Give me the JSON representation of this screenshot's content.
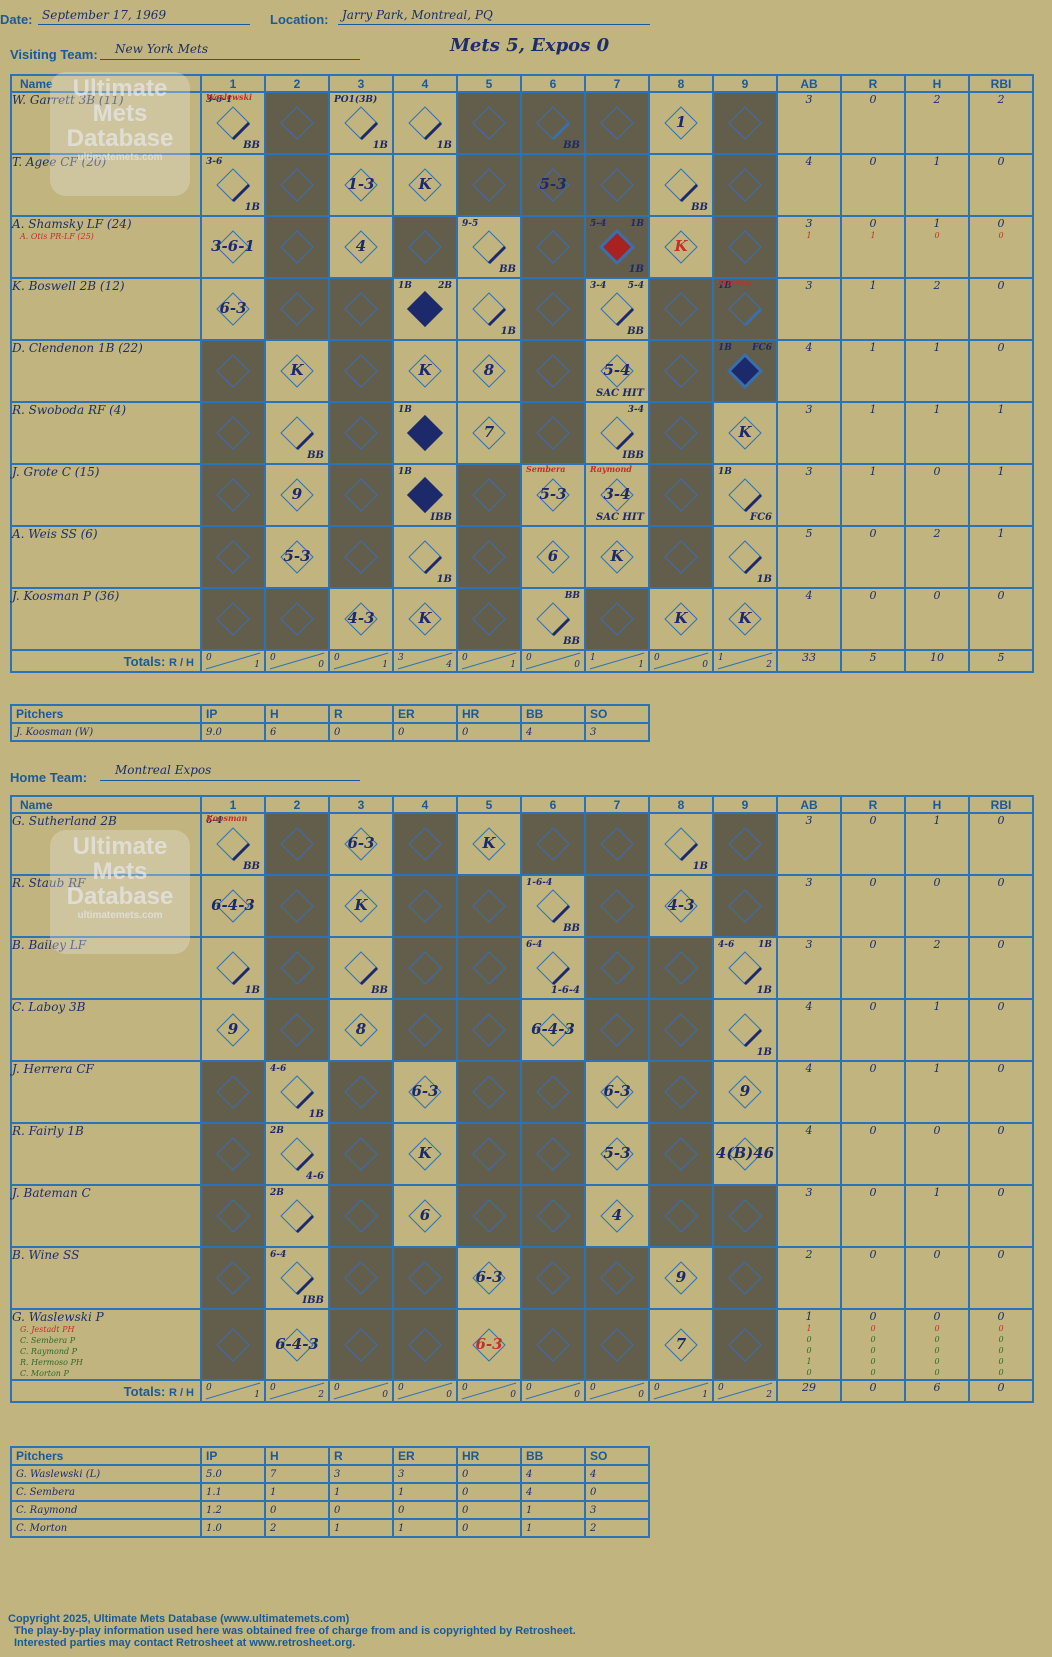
{
  "header": {
    "date_label": "Date:",
    "date": "September 17, 1969",
    "location_label": "Location:",
    "location": "Jarry Park, Montreal, PQ",
    "visiting_label": "Visiting Team:",
    "visiting_team": "New York Mets",
    "score_title": "Mets 5, Expos 0",
    "home_label": "Home Team:",
    "home_team": "Montreal Expos"
  },
  "columns": {
    "name": "Name",
    "innings": [
      "1",
      "2",
      "3",
      "4",
      "5",
      "6",
      "7",
      "8",
      "9"
    ],
    "stats": [
      "AB",
      "R",
      "H",
      "RBI"
    ]
  },
  "totals_label": "Totals:",
  "totals_r": "R",
  "totals_h": "H",
  "watermark": {
    "line1": "Ultimate",
    "line2": "Mets",
    "line3": "Database",
    "url": "ultimatemets.com"
  },
  "visitors": {
    "players": [
      {
        "name": "W. Garrett 3B (11)",
        "sub": "",
        "stats": [
          "3",
          "0",
          "2",
          "2"
        ],
        "sub_stats": []
      },
      {
        "name": "T. Agee CF (20)",
        "sub": "",
        "stats": [
          "4",
          "0",
          "1",
          "0"
        ],
        "sub_stats": []
      },
      {
        "name": "A. Shamsky LF (24)",
        "sub": "A. Otis PR-LF (25)",
        "stats": [
          "3",
          "0",
          "1",
          "0"
        ],
        "sub_stats": [
          "1",
          "1",
          "0",
          "0"
        ]
      },
      {
        "name": "K. Boswell 2B (12)",
        "sub": "",
        "stats": [
          "3",
          "1",
          "2",
          "0"
        ],
        "sub_stats": []
      },
      {
        "name": "D. Clendenon 1B (22)",
        "sub": "",
        "stats": [
          "4",
          "1",
          "1",
          "0"
        ],
        "sub_stats": []
      },
      {
        "name": "R. Swoboda RF (4)",
        "sub": "",
        "stats": [
          "3",
          "1",
          "1",
          "1"
        ],
        "sub_stats": []
      },
      {
        "name": "J. Grote C (15)",
        "sub": "",
        "stats": [
          "3",
          "1",
          "0",
          "1"
        ],
        "sub_stats": []
      },
      {
        "name": "A. Weis SS (6)",
        "sub": "",
        "stats": [
          "5",
          "0",
          "2",
          "1"
        ],
        "sub_stats": []
      },
      {
        "name": "J. Koosman P (36)",
        "sub": "",
        "stats": [
          "4",
          "0",
          "0",
          "0"
        ],
        "sub_stats": []
      }
    ],
    "cells": [
      [
        {
          "c": "",
          "br": "BB",
          "tl": "3-6-1",
          "tr": "",
          "note": "Waslewski",
          "hit": 1
        },
        {
          "dark": 1
        },
        {
          "c": "",
          "br": "1B",
          "tl": "PO1(3B)",
          "hit": 1
        },
        {
          "c": "",
          "br": "1B",
          "hit": 1
        },
        {
          "dark": 1
        },
        {
          "c": "",
          "br": "BB",
          "hit": 1,
          "dark": 1
        },
        {
          "dark": 1
        },
        {
          "c": "1"
        },
        {
          "dark": 1
        }
      ],
      [
        {
          "c": "",
          "br": "1B",
          "tl": "3-6",
          "hit": 1
        },
        {
          "dark": 1
        },
        {
          "c": "1-3"
        },
        {
          "c": "K"
        },
        {
          "dark": 1
        },
        {
          "c": "5-3",
          "dark": 1
        },
        {
          "dark": 1
        },
        {
          "c": "",
          "br": "BB",
          "hit": 1
        },
        {
          "dark": 1
        }
      ],
      [
        {
          "c": "3-6-1"
        },
        {
          "dark": 1
        },
        {
          "c": "4"
        },
        {
          "dark": 1
        },
        {
          "c": "",
          "br": "BB",
          "tl": "9-5",
          "hit": 1
        },
        {
          "dark": 1
        },
        {
          "c": "",
          "br": "1B",
          "tl": "5-4",
          "tr": "1B",
          "run": 2,
          "dark": 1
        },
        {
          "c": "K",
          "red": 1
        },
        {
          "dark": 1
        }
      ],
      [
        {
          "c": "6-3"
        },
        {
          "dark": 1
        },
        {
          "dark": 1
        },
        {
          "c": "",
          "br": "",
          "tl": "1B",
          "tr": "2B",
          "run": 1
        },
        {
          "c": "",
          "br": "1B",
          "hit": 1
        },
        {
          "dark": 1
        },
        {
          "c": "",
          "br": "BB",
          "tl": "3-4",
          "tr": "5-4",
          "hit": 1
        },
        {
          "dark": 1
        },
        {
          "c": "",
          "tl": "1B",
          "note": "Morton",
          "hit": 1,
          "dark": 1
        }
      ],
      [
        {
          "dark": 1
        },
        {
          "c": "K"
        },
        {
          "dark": 1
        },
        {
          "c": "K"
        },
        {
          "c": "8"
        },
        {
          "dark": 1
        },
        {
          "c": "5-4",
          "br": "SAC HIT"
        },
        {
          "dark": 1
        },
        {
          "c": "",
          "tl": "1B",
          "tr": "FC6",
          "run": 1,
          "dark": 1
        }
      ],
      [
        {
          "dark": 1
        },
        {
          "c": "",
          "br": "BB",
          "hit": 1
        },
        {
          "dark": 1
        },
        {
          "c": "",
          "tl": "1B",
          "run": 1
        },
        {
          "c": "7"
        },
        {
          "dark": 1
        },
        {
          "c": "",
          "br": "IBB",
          "tr": "3-4",
          "hit": 1
        },
        {
          "dark": 1
        },
        {
          "c": "K"
        }
      ],
      [
        {
          "dark": 1
        },
        {
          "c": "9"
        },
        {
          "dark": 1
        },
        {
          "c": "",
          "tl": "1B",
          "br": "IBB",
          "run": 1
        },
        {
          "dark": 1
        },
        {
          "c": "5-3",
          "note": "Sembera"
        },
        {
          "c": "3-4",
          "br": "SAC HIT",
          "note": "Raymond"
        },
        {
          "dark": 1
        },
        {
          "c": "",
          "br": "FC6",
          "tl": "1B",
          "hit": 1
        }
      ],
      [
        {
          "dark": 1
        },
        {
          "c": "5-3"
        },
        {
          "dark": 1
        },
        {
          "c": "",
          "br": "1B",
          "hit": 1
        },
        {
          "dark": 1
        },
        {
          "c": "6"
        },
        {
          "c": "K"
        },
        {
          "dark": 1
        },
        {
          "c": "",
          "br": "1B",
          "hit": 1
        }
      ],
      [
        {
          "dark": 1
        },
        {
          "dark": 1
        },
        {
          "c": "4-3"
        },
        {
          "c": "K"
        },
        {
          "dark": 1
        },
        {
          "c": "",
          "br": "BB",
          "tr": "BB",
          "hit": 1
        },
        {
          "dark": 1
        },
        {
          "c": "K"
        },
        {
          "c": "K"
        }
      ]
    ],
    "totals": [
      [
        "0",
        "1"
      ],
      [
        "0",
        "0"
      ],
      [
        "0",
        "1"
      ],
      [
        "3",
        "4"
      ],
      [
        "0",
        "1"
      ],
      [
        "0",
        "0"
      ],
      [
        "1",
        "1"
      ],
      [
        "0",
        "0"
      ],
      [
        "1",
        "2"
      ]
    ],
    "totals_stats": [
      "33",
      "5",
      "10",
      "5"
    ]
  },
  "visiting_pitchers": {
    "headers": [
      "Pitchers",
      "IP",
      "H",
      "R",
      "ER",
      "HR",
      "BB",
      "SO"
    ],
    "rows": [
      [
        "J. Koosman (W)",
        "9.0",
        "6",
        "0",
        "0",
        "0",
        "4",
        "3"
      ]
    ]
  },
  "home": {
    "players": [
      {
        "name": "G. Sutherland 2B",
        "sub": "",
        "stats": [
          "3",
          "0",
          "1",
          "0"
        ],
        "sub_stats": []
      },
      {
        "name": "R. Staub RF",
        "sub": "",
        "stats": [
          "3",
          "0",
          "0",
          "0"
        ],
        "sub_stats": []
      },
      {
        "name": "B. Bailey LF",
        "sub": "",
        "stats": [
          "3",
          "0",
          "2",
          "0"
        ],
        "sub_stats": []
      },
      {
        "name": "C. Laboy 3B",
        "sub": "",
        "stats": [
          "4",
          "0",
          "1",
          "0"
        ],
        "sub_stats": []
      },
      {
        "name": "J. Herrera CF",
        "sub": "",
        "stats": [
          "4",
          "0",
          "1",
          "0"
        ],
        "sub_stats": []
      },
      {
        "name": "R. Fairly 1B",
        "sub": "",
        "stats": [
          "4",
          "0",
          "0",
          "0"
        ],
        "sub_stats": []
      },
      {
        "name": "J. Bateman C",
        "sub": "",
        "stats": [
          "3",
          "0",
          "1",
          "0"
        ],
        "sub_stats": []
      },
      {
        "name": "B. Wine SS",
        "sub": "",
        "stats": [
          "2",
          "0",
          "0",
          "0"
        ],
        "sub_stats": []
      },
      {
        "name": "G. Waslewski P",
        "sub": "G. Jestadt PH",
        "sub2": [
          "C. Sembera P",
          "C. Raymond P",
          "R. Hermoso PH",
          "C. Morton P"
        ],
        "stats": [
          "1",
          "0",
          "0",
          "0"
        ],
        "sub_stats": [
          "1",
          "0",
          "0",
          "0"
        ]
      }
    ],
    "cells": [
      [
        {
          "c": "",
          "br": "BB",
          "tl": "6-4",
          "note": "Koosman",
          "hit": 1
        },
        {
          "dark": 1
        },
        {
          "c": "6-3"
        },
        {
          "dark": 1
        },
        {
          "c": "K"
        },
        {
          "dark": 1
        },
        {
          "dark": 1
        },
        {
          "c": "",
          "br": "1B",
          "hit": 1
        },
        {
          "dark": 1
        }
      ],
      [
        {
          "c": "6-4-3"
        },
        {
          "dark": 1
        },
        {
          "c": "K"
        },
        {
          "dark": 1
        },
        {
          "dark": 1
        },
        {
          "c": "",
          "br": "BB",
          "tl": "1-6-4",
          "hit": 1
        },
        {
          "dark": 1
        },
        {
          "c": "4-3"
        },
        {
          "dark": 1
        }
      ],
      [
        {
          "c": "",
          "br": "1B",
          "hit": 1
        },
        {
          "dark": 1
        },
        {
          "c": "",
          "br": "BB",
          "hit": 1
        },
        {
          "dark": 1
        },
        {
          "dark": 1
        },
        {
          "c": "",
          "br": "1-6-4",
          "tl": "6-4",
          "hit": 1
        },
        {
          "dark": 1
        },
        {
          "dark": 1
        },
        {
          "c": "",
          "br": "1B",
          "tl": "4-6",
          "tr": "1B",
          "hit": 1
        }
      ],
      [
        {
          "c": "9"
        },
        {
          "dark": 1
        },
        {
          "c": "8"
        },
        {
          "dark": 1
        },
        {
          "dark": 1
        },
        {
          "c": "6-4-3"
        },
        {
          "dark": 1
        },
        {
          "dark": 1
        },
        {
          "c": "",
          "br": "1B",
          "hit": 1
        }
      ],
      [
        {
          "dark": 1
        },
        {
          "c": "",
          "br": "1B",
          "tl": "4-6",
          "hit": 1
        },
        {
          "dark": 1
        },
        {
          "c": "6-3"
        },
        {
          "dark": 1
        },
        {
          "dark": 1
        },
        {
          "c": "6-3"
        },
        {
          "dark": 1
        },
        {
          "c": "9"
        }
      ],
      [
        {
          "dark": 1
        },
        {
          "c": "",
          "br": "4-6",
          "tl": "2B",
          "hit": 1
        },
        {
          "dark": 1
        },
        {
          "c": "K"
        },
        {
          "dark": 1
        },
        {
          "dark": 1
        },
        {
          "c": "5-3"
        },
        {
          "dark": 1
        },
        {
          "c": "4(B)46"
        }
      ],
      [
        {
          "dark": 1
        },
        {
          "c": "",
          "tl": "2B",
          "hit": 1
        },
        {
          "dark": 1
        },
        {
          "c": "6"
        },
        {
          "dark": 1
        },
        {
          "dark": 1
        },
        {
          "c": "4"
        },
        {
          "dark": 1
        },
        {
          "dark": 1
        }
      ],
      [
        {
          "dark": 1
        },
        {
          "c": "",
          "br": "IBB",
          "tl": "6-4",
          "hit": 1
        },
        {
          "dark": 1
        },
        {
          "dark": 1
        },
        {
          "c": "6-3"
        },
        {
          "dark": 1
        },
        {
          "dark": 1
        },
        {
          "c": "9"
        },
        {
          "dark": 1
        }
      ],
      [
        {
          "dark": 1
        },
        {
          "c": "6-4-3"
        },
        {
          "dark": 1
        },
        {
          "dark": 1
        },
        {
          "c": "6-3",
          "red": 1
        },
        {
          "dark": 1
        },
        {
          "dark": 1
        },
        {
          "c": "7"
        },
        {
          "dark": 1
        }
      ]
    ],
    "totals": [
      [
        "0",
        "1"
      ],
      [
        "0",
        "2"
      ],
      [
        "0",
        "0"
      ],
      [
        "0",
        "0"
      ],
      [
        "0",
        "0"
      ],
      [
        "0",
        "0"
      ],
      [
        "0",
        "0"
      ],
      [
        "0",
        "1"
      ],
      [
        "0",
        "2"
      ]
    ],
    "totals_stats": [
      "29",
      "0",
      "6",
      "0"
    ],
    "extra_sub_stats": [
      [
        "1",
        "0",
        "0",
        "0"
      ],
      [
        "0",
        "0",
        "0",
        "0"
      ],
      [
        "0",
        "0",
        "0",
        "0"
      ],
      [
        "1",
        "0",
        "0",
        "0"
      ],
      [
        "0",
        "0",
        "0",
        "0"
      ]
    ]
  },
  "home_pitchers": {
    "headers": [
      "Pitchers",
      "IP",
      "H",
      "R",
      "ER",
      "HR",
      "BB",
      "SO"
    ],
    "rows": [
      [
        "G. Waslewski (L)",
        "5.0",
        "7",
        "3",
        "3",
        "0",
        "4",
        "4"
      ],
      [
        "C. Sembera",
        "1.1",
        "1",
        "1",
        "1",
        "0",
        "4",
        "0"
      ],
      [
        "C. Raymond",
        "1.2",
        "0",
        "0",
        "0",
        "0",
        "1",
        "3"
      ],
      [
        "C. Morton",
        "1.0",
        "2",
        "1",
        "1",
        "0",
        "1",
        "2"
      ]
    ]
  },
  "footer": {
    "line1": "Copyright 2025, Ultimate Mets Database (www.ultimatemets.com)",
    "line2": "The play-by-play information used here was obtained free of charge from and is copyrighted by Retrosheet.",
    "line3": "Interested parties may contact Retrosheet at www.retrosheet.org."
  }
}
